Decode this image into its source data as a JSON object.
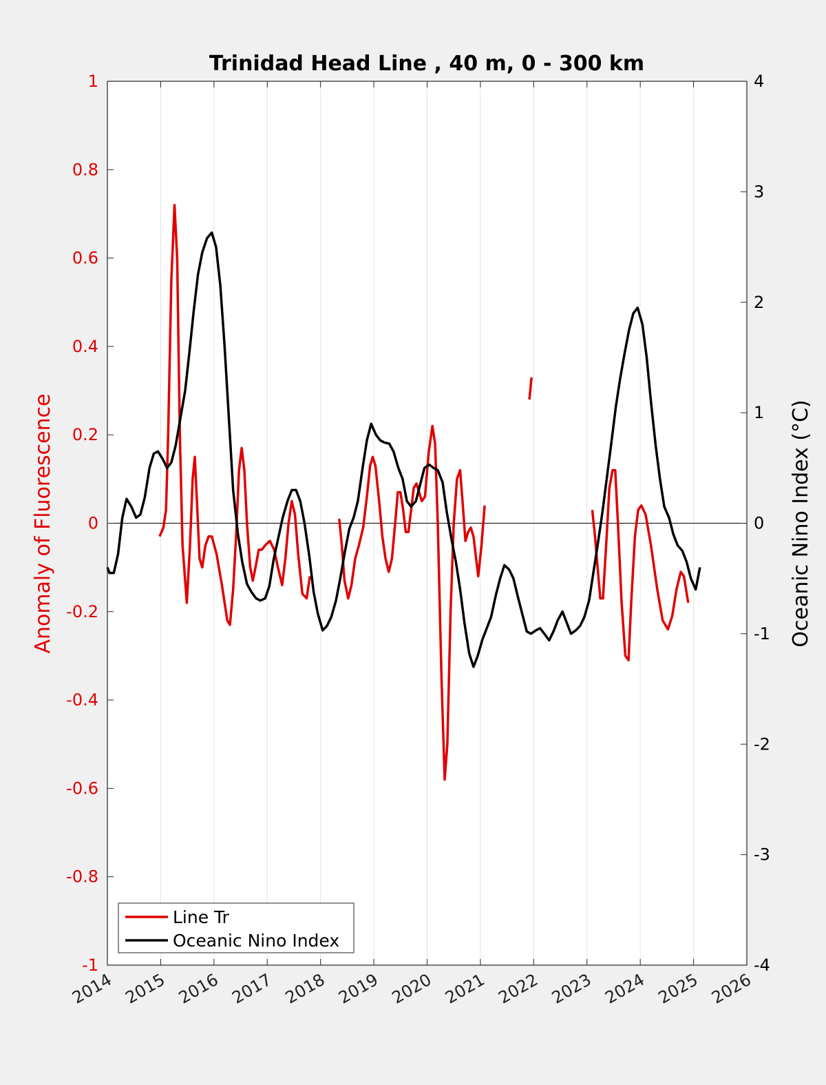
{
  "chart_data": {
    "type": "line",
    "title": "Trinidad Head Line , 40 m, 0 - 300 km",
    "xlim": [
      2014,
      2026
    ],
    "xticks": [
      "2014",
      "2015",
      "2016",
      "2017",
      "2018",
      "2019",
      "2020",
      "2021",
      "2022",
      "2023",
      "2024",
      "2025",
      "2026"
    ],
    "grid": "vertical-x",
    "legend_position": "bottom-left",
    "y_left": {
      "label": "Anomaly of Fluorescence",
      "ylim": [
        -1,
        1
      ],
      "ticks": [
        "-1",
        "-0.8",
        "-0.6",
        "-0.4",
        "-0.2",
        "0",
        "0.2",
        "0.4",
        "0.6",
        "0.8",
        "1"
      ],
      "color": "#e00000"
    },
    "y_right": {
      "label": "Oceanic Nino Index (°C)",
      "ylim": [
        -4,
        4
      ],
      "ticks": [
        "-4",
        "-3",
        "-2",
        "-1",
        "0",
        "1",
        "2",
        "3",
        "4"
      ],
      "color": "#000000"
    },
    "zero_line": 0,
    "series": [
      {
        "name": "Line Tr",
        "axis": "left",
        "color": "#e00000",
        "segments": [
          [
            [
              2014.98,
              -0.03
            ],
            [
              2015.05,
              -0.01
            ],
            [
              2015.1,
              0.03
            ],
            [
              2015.14,
              0.2
            ],
            [
              2015.2,
              0.55
            ],
            [
              2015.26,
              0.72
            ],
            [
              2015.31,
              0.6
            ],
            [
              2015.36,
              0.2
            ],
            [
              2015.41,
              -0.05
            ],
            [
              2015.49,
              -0.18
            ],
            [
              2015.55,
              -0.05
            ],
            [
              2015.6,
              0.1
            ],
            [
              2015.64,
              0.15
            ],
            [
              2015.68,
              0.05
            ],
            [
              2015.73,
              -0.08
            ],
            [
              2015.78,
              -0.1
            ],
            [
              2015.84,
              -0.05
            ],
            [
              2015.9,
              -0.03
            ],
            [
              2015.96,
              -0.03
            ],
            [
              2016.05,
              -0.07
            ],
            [
              2016.15,
              -0.14
            ],
            [
              2016.25,
              -0.22
            ],
            [
              2016.3,
              -0.23
            ],
            [
              2016.36,
              -0.15
            ],
            [
              2016.42,
              -0.02
            ],
            [
              2016.47,
              0.12
            ],
            [
              2016.52,
              0.17
            ],
            [
              2016.57,
              0.12
            ],
            [
              2016.62,
              0.0
            ],
            [
              2016.68,
              -0.1
            ],
            [
              2016.73,
              -0.13
            ],
            [
              2016.78,
              -0.1
            ],
            [
              2016.84,
              -0.06
            ],
            [
              2016.9,
              -0.06
            ],
            [
              2016.96,
              -0.05
            ],
            [
              2017.05,
              -0.04
            ],
            [
              2017.13,
              -0.06
            ],
            [
              2017.2,
              -0.1
            ],
            [
              2017.28,
              -0.14
            ],
            [
              2017.34,
              -0.08
            ],
            [
              2017.4,
              0.0
            ],
            [
              2017.46,
              0.05
            ],
            [
              2017.52,
              0.02
            ],
            [
              2017.58,
              -0.07
            ],
            [
              2017.66,
              -0.16
            ],
            [
              2017.74,
              -0.17
            ],
            [
              2017.8,
              -0.12
            ]
          ],
          [
            [
              2018.35,
              0.01
            ],
            [
              2018.4,
              -0.05
            ],
            [
              2018.45,
              -0.13
            ],
            [
              2018.52,
              -0.17
            ],
            [
              2018.58,
              -0.14
            ],
            [
              2018.65,
              -0.08
            ],
            [
              2018.72,
              -0.05
            ],
            [
              2018.8,
              -0.01
            ],
            [
              2018.87,
              0.06
            ],
            [
              2018.93,
              0.13
            ],
            [
              2018.98,
              0.15
            ],
            [
              2019.03,
              0.13
            ],
            [
              2019.1,
              0.05
            ],
            [
              2019.16,
              -0.03
            ],
            [
              2019.22,
              -0.08
            ],
            [
              2019.28,
              -0.11
            ],
            [
              2019.34,
              -0.08
            ],
            [
              2019.4,
              0.0
            ],
            [
              2019.45,
              0.07
            ],
            [
              2019.5,
              0.07
            ],
            [
              2019.55,
              0.03
            ],
            [
              2019.6,
              -0.02
            ],
            [
              2019.65,
              -0.02
            ],
            [
              2019.7,
              0.03
            ],
            [
              2019.75,
              0.08
            ],
            [
              2019.8,
              0.09
            ],
            [
              2019.85,
              0.07
            ],
            [
              2019.9,
              0.05
            ],
            [
              2019.96,
              0.06
            ],
            [
              2020.03,
              0.16
            ],
            [
              2020.1,
              0.22
            ],
            [
              2020.15,
              0.18
            ],
            [
              2020.2,
              0.0
            ],
            [
              2020.27,
              -0.35
            ],
            [
              2020.33,
              -0.58
            ],
            [
              2020.38,
              -0.5
            ],
            [
              2020.44,
              -0.2
            ],
            [
              2020.5,
              0.0
            ],
            [
              2020.56,
              0.1
            ],
            [
              2020.62,
              0.12
            ],
            [
              2020.67,
              0.04
            ],
            [
              2020.72,
              -0.04
            ],
            [
              2020.77,
              -0.02
            ],
            [
              2020.82,
              -0.01
            ],
            [
              2020.87,
              -0.03
            ],
            [
              2020.92,
              -0.08
            ],
            [
              2020.96,
              -0.12
            ],
            [
              2021.02,
              -0.05
            ],
            [
              2021.08,
              0.04
            ]
          ],
          [
            [
              2021.92,
              0.28
            ],
            [
              2021.96,
              0.33
            ]
          ],
          [
            [
              2023.1,
              0.03
            ],
            [
              2023.15,
              -0.03
            ],
            [
              2023.2,
              -0.1
            ],
            [
              2023.25,
              -0.17
            ],
            [
              2023.3,
              -0.17
            ],
            [
              2023.36,
              -0.05
            ],
            [
              2023.42,
              0.08
            ],
            [
              2023.48,
              0.12
            ],
            [
              2023.53,
              0.12
            ],
            [
              2023.58,
              0.0
            ],
            [
              2023.65,
              -0.18
            ],
            [
              2023.72,
              -0.3
            ],
            [
              2023.78,
              -0.31
            ],
            [
              2023.83,
              -0.18
            ],
            [
              2023.9,
              -0.03
            ],
            [
              2023.96,
              0.03
            ],
            [
              2024.02,
              0.04
            ],
            [
              2024.1,
              0.02
            ],
            [
              2024.2,
              -0.05
            ],
            [
              2024.32,
              -0.15
            ],
            [
              2024.42,
              -0.22
            ],
            [
              2024.52,
              -0.24
            ],
            [
              2024.6,
              -0.21
            ],
            [
              2024.68,
              -0.15
            ],
            [
              2024.76,
              -0.11
            ],
            [
              2024.82,
              -0.12
            ],
            [
              2024.9,
              -0.18
            ]
          ]
        ]
      },
      {
        "name": "Oceanic Nino Index",
        "axis": "right",
        "color": "#000000",
        "points": [
          [
            2014.0,
            -0.4
          ],
          [
            2014.04,
            -0.45
          ],
          [
            2014.12,
            -0.45
          ],
          [
            2014.2,
            -0.28
          ],
          [
            2014.28,
            0.05
          ],
          [
            2014.36,
            0.22
          ],
          [
            2014.45,
            0.15
          ],
          [
            2014.54,
            0.05
          ],
          [
            2014.62,
            0.08
          ],
          [
            2014.7,
            0.23
          ],
          [
            2014.79,
            0.5
          ],
          [
            2014.87,
            0.63
          ],
          [
            2014.95,
            0.65
          ],
          [
            2015.04,
            0.58
          ],
          [
            2015.12,
            0.5
          ],
          [
            2015.2,
            0.55
          ],
          [
            2015.28,
            0.7
          ],
          [
            2015.37,
            0.95
          ],
          [
            2015.46,
            1.2
          ],
          [
            2015.54,
            1.55
          ],
          [
            2015.62,
            1.92
          ],
          [
            2015.7,
            2.25
          ],
          [
            2015.78,
            2.45
          ],
          [
            2015.87,
            2.58
          ],
          [
            2015.96,
            2.63
          ],
          [
            2016.04,
            2.5
          ],
          [
            2016.12,
            2.15
          ],
          [
            2016.2,
            1.6
          ],
          [
            2016.28,
            0.95
          ],
          [
            2016.36,
            0.3
          ],
          [
            2016.45,
            -0.1
          ],
          [
            2016.53,
            -0.35
          ],
          [
            2016.62,
            -0.55
          ],
          [
            2016.7,
            -0.62
          ],
          [
            2016.79,
            -0.68
          ],
          [
            2016.87,
            -0.7
          ],
          [
            2016.96,
            -0.68
          ],
          [
            2017.04,
            -0.57
          ],
          [
            2017.12,
            -0.33
          ],
          [
            2017.2,
            -0.15
          ],
          [
            2017.29,
            0.05
          ],
          [
            2017.38,
            0.2
          ],
          [
            2017.46,
            0.3
          ],
          [
            2017.54,
            0.3
          ],
          [
            2017.62,
            0.2
          ],
          [
            2017.7,
            0.0
          ],
          [
            2017.79,
            -0.3
          ],
          [
            2017.87,
            -0.62
          ],
          [
            2017.95,
            -0.82
          ],
          [
            2018.04,
            -0.97
          ],
          [
            2018.12,
            -0.93
          ],
          [
            2018.2,
            -0.85
          ],
          [
            2018.29,
            -0.7
          ],
          [
            2018.37,
            -0.5
          ],
          [
            2018.46,
            -0.25
          ],
          [
            2018.54,
            -0.05
          ],
          [
            2018.62,
            0.05
          ],
          [
            2018.7,
            0.2
          ],
          [
            2018.79,
            0.5
          ],
          [
            2018.87,
            0.75
          ],
          [
            2018.95,
            0.9
          ],
          [
            2019.04,
            0.8
          ],
          [
            2019.12,
            0.75
          ],
          [
            2019.2,
            0.73
          ],
          [
            2019.29,
            0.72
          ],
          [
            2019.37,
            0.65
          ],
          [
            2019.46,
            0.5
          ],
          [
            2019.54,
            0.4
          ],
          [
            2019.62,
            0.2
          ],
          [
            2019.7,
            0.15
          ],
          [
            2019.79,
            0.2
          ],
          [
            2019.87,
            0.35
          ],
          [
            2019.95,
            0.5
          ],
          [
            2020.04,
            0.53
          ],
          [
            2020.12,
            0.5
          ],
          [
            2020.2,
            0.48
          ],
          [
            2020.29,
            0.37
          ],
          [
            2020.37,
            0.1
          ],
          [
            2020.46,
            -0.15
          ],
          [
            2020.54,
            -0.35
          ],
          [
            2020.62,
            -0.6
          ],
          [
            2020.7,
            -0.9
          ],
          [
            2020.79,
            -1.18
          ],
          [
            2020.87,
            -1.3
          ],
          [
            2020.95,
            -1.2
          ],
          [
            2021.04,
            -1.05
          ],
          [
            2021.12,
            -0.95
          ],
          [
            2021.2,
            -0.85
          ],
          [
            2021.29,
            -0.65
          ],
          [
            2021.37,
            -0.5
          ],
          [
            2021.45,
            -0.38
          ],
          [
            2021.54,
            -0.42
          ],
          [
            2021.62,
            -0.5
          ],
          [
            2021.7,
            -0.66
          ],
          [
            2021.79,
            -0.83
          ],
          [
            2021.87,
            -0.98
          ],
          [
            2021.95,
            -1.0
          ],
          [
            2022.04,
            -0.97
          ],
          [
            2022.12,
            -0.95
          ],
          [
            2022.2,
            -1.0
          ],
          [
            2022.29,
            -1.06
          ],
          [
            2022.37,
            -0.98
          ],
          [
            2022.45,
            -0.88
          ],
          [
            2022.54,
            -0.8
          ],
          [
            2022.62,
            -0.9
          ],
          [
            2022.7,
            -1.0
          ],
          [
            2022.79,
            -0.97
          ],
          [
            2022.87,
            -0.93
          ],
          [
            2022.95,
            -0.85
          ],
          [
            2023.04,
            -0.7
          ],
          [
            2023.12,
            -0.45
          ],
          [
            2023.2,
            -0.2
          ],
          [
            2023.29,
            0.1
          ],
          [
            2023.37,
            0.4
          ],
          [
            2023.45,
            0.7
          ],
          [
            2023.54,
            1.05
          ],
          [
            2023.62,
            1.3
          ],
          [
            2023.7,
            1.52
          ],
          [
            2023.79,
            1.75
          ],
          [
            2023.87,
            1.9
          ],
          [
            2023.95,
            1.95
          ],
          [
            2024.04,
            1.8
          ],
          [
            2024.12,
            1.5
          ],
          [
            2024.2,
            1.1
          ],
          [
            2024.29,
            0.7
          ],
          [
            2024.37,
            0.4
          ],
          [
            2024.45,
            0.15
          ],
          [
            2024.54,
            0.05
          ],
          [
            2024.62,
            -0.1
          ],
          [
            2024.7,
            -0.2
          ],
          [
            2024.79,
            -0.25
          ],
          [
            2024.87,
            -0.35
          ],
          [
            2024.95,
            -0.5
          ],
          [
            2025.04,
            -0.6
          ],
          [
            2025.12,
            -0.4
          ]
        ]
      }
    ]
  }
}
